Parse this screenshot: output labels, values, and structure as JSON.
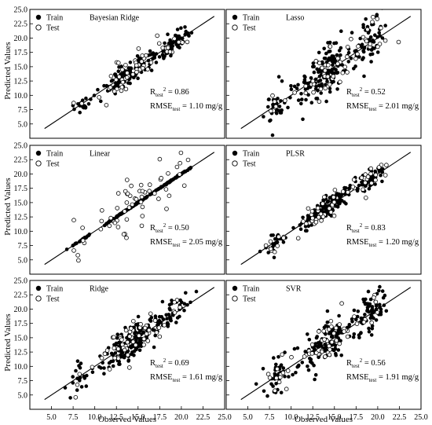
{
  "figure": {
    "ylabel": "Predicted Values",
    "xlabel": "Observed Values",
    "axis": {
      "xlim": [
        2.5,
        25.0
      ],
      "ylim": [
        2.5,
        25.0
      ],
      "ticks": [
        5.0,
        7.5,
        10.0,
        12.5,
        15.0,
        17.5,
        20.0,
        22.5,
        25.0
      ],
      "tick_labels": [
        "5.0",
        "7.5",
        "10.0",
        "12.5",
        "15.0",
        "17.5",
        "20.0",
        "22.5",
        "25.0"
      ]
    },
    "legend": {
      "train": "Train",
      "test": "Test"
    }
  },
  "chart_data": [
    {
      "type": "scatter",
      "title": "Bayesian Ridge",
      "r2_label": "R",
      "r2_sub": "test",
      "r2_value": "= 0.86",
      "rmse_label": "RMSE",
      "rmse_sub": "test",
      "rmse_value": "= 1.10 mg/g",
      "seed": 11,
      "noise_train": 0.9,
      "noise_test": 1.1
    },
    {
      "type": "scatter",
      "title": "Lasso",
      "r2_label": "R",
      "r2_sub": "test",
      "r2_value": "= 0.52",
      "rmse_label": "RMSE",
      "rmse_sub": "test",
      "rmse_value": "= 2.01 mg/g",
      "seed": 23,
      "noise_train": 1.9,
      "noise_test": 2.2
    },
    {
      "type": "scatter",
      "title": "Linear",
      "r2_label": "R",
      "r2_sub": "test",
      "r2_value": "= 0.50",
      "rmse_label": "RMSE",
      "rmse_sub": "test",
      "rmse_value": "= 2.05 mg/g",
      "seed": 37,
      "noise_train": 0.05,
      "noise_test": 2.2
    },
    {
      "type": "scatter",
      "title": "PLSR",
      "r2_label": "R",
      "r2_sub": "test",
      "r2_value": "= 0.83",
      "rmse_label": "RMSE",
      "rmse_sub": "test",
      "rmse_value": "= 1.20 mg/g",
      "seed": 41,
      "noise_train": 0.9,
      "noise_test": 1.2
    },
    {
      "type": "scatter",
      "title": "Ridge",
      "r2_label": "R",
      "r2_sub": "test",
      "r2_value": "= 0.69",
      "rmse_label": "RMSE",
      "rmse_sub": "test",
      "rmse_value": "= 1.61 mg/g",
      "seed": 53,
      "noise_train": 1.5,
      "noise_test": 1.6
    },
    {
      "type": "scatter",
      "title": "SVR",
      "r2_label": "R",
      "r2_sub": "test",
      "r2_value": "= 0.56",
      "rmse_label": "RMSE",
      "rmse_sub": "test",
      "rmse_value": "= 1.91 mg/g",
      "seed": 67,
      "noise_train": 1.6,
      "noise_test": 1.9
    }
  ]
}
